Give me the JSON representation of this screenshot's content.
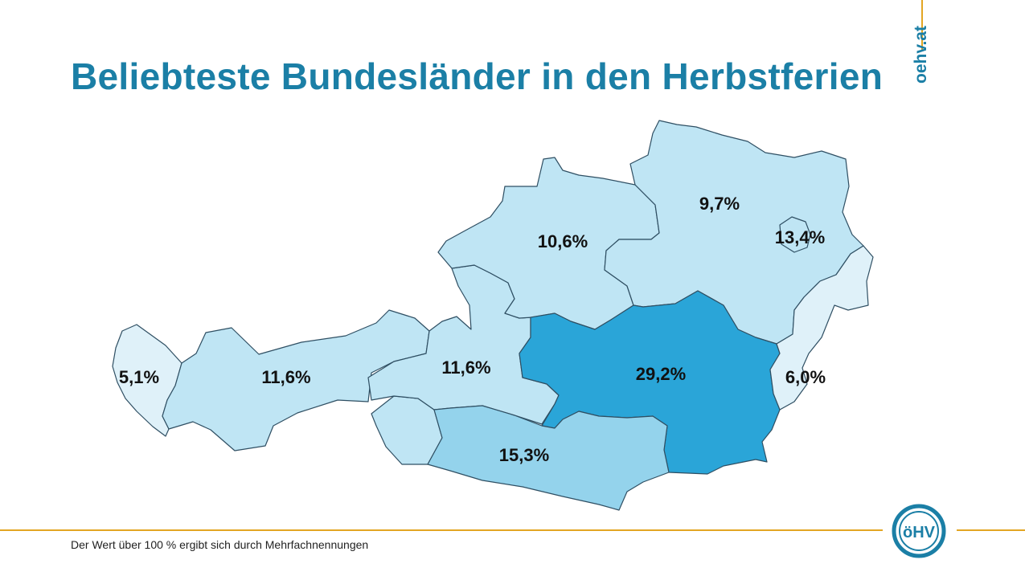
{
  "title": "Beliebteste Bundesländer in den Herbstferien",
  "brand_vertical": "oehv.at",
  "logo_text": "öHV",
  "footnote": "Der Wert über 100 % ergibt sich durch Mehrfachnennungen",
  "colors": {
    "title": "#1b7fa6",
    "accent_line": "#e3a623",
    "highest": "#2aa5d8",
    "medium": "#94d3ec",
    "light": "#bfe5f4",
    "lightest": "#dff1f9"
  },
  "map_values": {
    "vorarlberg": "5,1%",
    "tirol": "11,6%",
    "salzburg": "11,6%",
    "oberoesterreich": "10,6%",
    "niederoesterreich": "9,7%",
    "wien": "13,4%",
    "steiermark": "29,2%",
    "burgenland": "6,0%",
    "kaernten": "15,3%"
  }
}
